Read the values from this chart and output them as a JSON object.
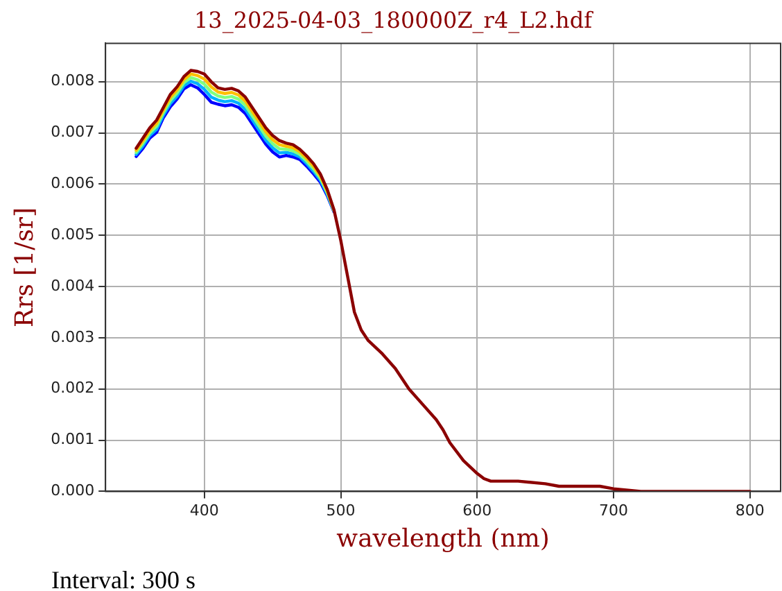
{
  "chart_data": {
    "type": "line",
    "title": "13_2025-04-03_180000Z_r4_L2.hdf",
    "xlabel": "wavelength (nm)",
    "ylabel": "Rrs [1/sr]",
    "annotations": [
      "Interval: 300 s"
    ],
    "x": [
      350,
      355,
      360,
      365,
      370,
      375,
      380,
      385,
      390,
      395,
      400,
      405,
      410,
      415,
      420,
      425,
      430,
      435,
      440,
      445,
      450,
      455,
      460,
      465,
      470,
      475,
      480,
      485,
      490,
      495,
      500,
      505,
      510,
      515,
      520,
      530,
      540,
      550,
      560,
      570,
      575,
      580,
      590,
      600,
      605,
      610,
      630,
      650,
      660,
      680,
      690,
      700,
      720,
      750,
      800
    ],
    "series": [
      {
        "color": "#0000ff",
        "values": [
          0.00654,
          0.0067,
          0.0069,
          0.00701,
          0.0073,
          0.00751,
          0.00766,
          0.00786,
          0.00794,
          0.00788,
          0.00775,
          0.0076,
          0.00756,
          0.00753,
          0.00755,
          0.0075,
          0.00738,
          0.00718,
          0.00698,
          0.00678,
          0.00663,
          0.00653,
          0.00656,
          0.00653,
          0.00648,
          0.00635,
          0.0062,
          0.00604,
          0.00578,
          0.00546,
          null,
          null,
          null,
          null,
          null,
          null,
          null,
          null,
          null,
          null,
          null,
          null,
          null,
          null,
          null,
          null,
          null,
          null,
          null,
          null,
          null,
          null,
          null,
          null,
          null
        ]
      },
      {
        "color": "#00b0ff",
        "values": [
          0.00658,
          0.00675,
          0.00695,
          0.00707,
          0.00735,
          0.00757,
          0.00772,
          0.00792,
          0.00801,
          0.00796,
          0.00785,
          0.0077,
          0.00764,
          0.00761,
          0.00763,
          0.00758,
          0.00746,
          0.00726,
          0.00706,
          0.00686,
          0.00671,
          0.00661,
          0.00662,
          0.00659,
          0.00653,
          0.0064,
          0.00625,
          0.00608,
          0.00581,
          0.00547,
          null,
          null,
          null,
          null,
          null,
          null,
          null,
          null,
          null,
          null,
          null,
          null,
          null,
          null,
          null,
          null,
          null,
          null,
          null,
          null,
          null,
          null,
          null,
          null,
          null
        ]
      },
      {
        "color": "#80ff80",
        "values": [
          0.00662,
          0.0068,
          0.007,
          0.00713,
          0.0074,
          0.00763,
          0.00778,
          0.00798,
          0.00808,
          0.00804,
          0.00795,
          0.0078,
          0.00772,
          0.00769,
          0.00771,
          0.00766,
          0.00754,
          0.00734,
          0.00714,
          0.00694,
          0.00679,
          0.00669,
          0.00668,
          0.00665,
          0.00658,
          0.00645,
          0.0063,
          0.00612,
          0.00584,
          0.00548,
          null,
          null,
          null,
          null,
          null,
          null,
          null,
          null,
          null,
          null,
          null,
          null,
          null,
          null,
          null,
          null,
          null,
          null,
          null,
          null,
          null,
          null,
          null,
          null,
          null
        ]
      },
      {
        "color": "#ffc000",
        "values": [
          0.00666,
          0.00685,
          0.00705,
          0.00719,
          0.00745,
          0.00769,
          0.00784,
          0.00804,
          0.00815,
          0.00812,
          0.00805,
          0.0079,
          0.0078,
          0.00777,
          0.00779,
          0.00774,
          0.00762,
          0.00742,
          0.00722,
          0.00702,
          0.00687,
          0.00677,
          0.00674,
          0.00671,
          0.00663,
          0.0065,
          0.00635,
          0.00616,
          0.00587,
          0.00549,
          null,
          null,
          null,
          null,
          null,
          null,
          null,
          null,
          null,
          null,
          null,
          null,
          null,
          null,
          null,
          null,
          null,
          null,
          null,
          null,
          null,
          null,
          null,
          null,
          null
        ]
      },
      {
        "color": "#8b0000",
        "values": [
          0.0067,
          0.0069,
          0.0071,
          0.00725,
          0.0075,
          0.00775,
          0.0079,
          0.0081,
          0.00822,
          0.0082,
          0.00815,
          0.008,
          0.00788,
          0.00785,
          0.00787,
          0.00782,
          0.0077,
          0.0075,
          0.0073,
          0.0071,
          0.00695,
          0.00685,
          0.0068,
          0.00677,
          0.00668,
          0.00655,
          0.0064,
          0.0062,
          0.0059,
          0.0055,
          0.0049,
          0.0042,
          0.0035,
          0.00315,
          0.00295,
          0.0027,
          0.0024,
          0.002,
          0.0017,
          0.0014,
          0.0012,
          0.00095,
          0.0006,
          0.00035,
          0.00025,
          0.0002,
          0.0002,
          0.00015,
          0.0001,
          0.0001,
          0.0001,
          5e-05,
          0,
          0,
          0
        ]
      }
    ],
    "xlim": [
      327.5,
      822.5
    ],
    "xticks": [
      400,
      500,
      600,
      700,
      800
    ],
    "ylim": [
      0,
      0.00875
    ],
    "yticks": [
      {
        "value": 0,
        "label": "0.000"
      },
      {
        "value": 0.001,
        "label": "0.001"
      },
      {
        "value": 0.002,
        "label": "0.002"
      },
      {
        "value": 0.003,
        "label": "0.003"
      },
      {
        "value": 0.004,
        "label": "0.004"
      },
      {
        "value": 0.005,
        "label": "0.005"
      },
      {
        "value": 0.006,
        "label": "0.006"
      },
      {
        "value": 0.007,
        "label": "0.007"
      },
      {
        "value": 0.008,
        "label": "0.008"
      }
    ],
    "grid": true,
    "legend": false,
    "marker": "none",
    "line_style": "solid"
  }
}
